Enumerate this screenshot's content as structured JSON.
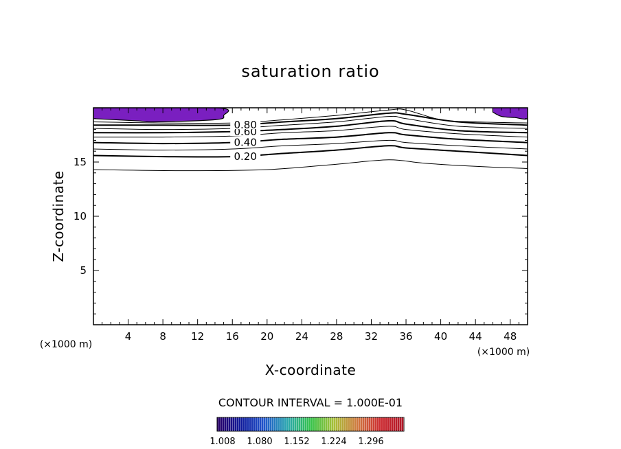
{
  "chart_data": {
    "type": "contour",
    "title": "saturation ratio",
    "xlabel": "X-coordinate",
    "ylabel": "Z-coordinate",
    "x_unit": "(×1000 m)",
    "y_unit": "(×1000 m)",
    "xlim": [
      0,
      50
    ],
    "ylim": [
      0,
      20
    ],
    "x_ticks": [
      4,
      8,
      12,
      16,
      20,
      24,
      28,
      32,
      36,
      40,
      44,
      48
    ],
    "y_ticks": [
      5,
      10,
      15
    ],
    "contour_interval_text": "CONTOUR INTERVAL = 1.000E-01",
    "contour_labels": [
      "0.80",
      "0.60",
      "0.40",
      "0.20"
    ],
    "contours": [
      {
        "level": 0.1,
        "labeled": false,
        "bold": false,
        "points": [
          [
            0,
            14.3
          ],
          [
            10,
            14.2
          ],
          [
            20,
            14.3
          ],
          [
            28,
            14.8
          ],
          [
            34,
            15.2
          ],
          [
            38,
            14.9
          ],
          [
            44,
            14.6
          ],
          [
            50,
            14.4
          ]
        ]
      },
      {
        "level": 0.2,
        "labeled": true,
        "label": "0.20",
        "bold": true,
        "points": [
          [
            0,
            15.6
          ],
          [
            8,
            15.5
          ],
          [
            16,
            15.5
          ],
          [
            22,
            15.8
          ],
          [
            28,
            16.1
          ],
          [
            34,
            16.5
          ],
          [
            36,
            16.3
          ],
          [
            42,
            16.0
          ],
          [
            50,
            15.6
          ]
        ]
      },
      {
        "level": 0.3,
        "labeled": false,
        "bold": false,
        "points": [
          [
            0,
            16.2
          ],
          [
            8,
            16.1
          ],
          [
            16,
            16.2
          ],
          [
            22,
            16.5
          ],
          [
            28,
            16.7
          ],
          [
            34,
            17.0
          ],
          [
            36,
            16.8
          ],
          [
            42,
            16.5
          ],
          [
            50,
            16.2
          ]
        ]
      },
      {
        "level": 0.4,
        "labeled": true,
        "label": "0.40",
        "bold": true,
        "points": [
          [
            0,
            16.8
          ],
          [
            8,
            16.7
          ],
          [
            16,
            16.8
          ],
          [
            22,
            17.1
          ],
          [
            28,
            17.3
          ],
          [
            34,
            17.7
          ],
          [
            36,
            17.5
          ],
          [
            42,
            17.1
          ],
          [
            50,
            16.8
          ]
        ]
      },
      {
        "level": 0.5,
        "labeled": false,
        "bold": false,
        "points": [
          [
            0,
            17.3
          ],
          [
            8,
            17.3
          ],
          [
            16,
            17.4
          ],
          [
            22,
            17.7
          ],
          [
            28,
            17.9
          ],
          [
            34,
            18.3
          ],
          [
            36,
            18.0
          ],
          [
            42,
            17.6
          ],
          [
            50,
            17.3
          ]
        ]
      },
      {
        "level": 0.6,
        "labeled": true,
        "label": "0.60",
        "bold": true,
        "points": [
          [
            0,
            17.7
          ],
          [
            8,
            17.7
          ],
          [
            16,
            17.8
          ],
          [
            22,
            18.0
          ],
          [
            28,
            18.3
          ],
          [
            34,
            18.8
          ],
          [
            36,
            18.5
          ],
          [
            42,
            17.9
          ],
          [
            50,
            17.7
          ]
        ]
      },
      {
        "level": 0.7,
        "labeled": false,
        "bold": false,
        "points": [
          [
            0,
            18.1
          ],
          [
            8,
            18.0
          ],
          [
            16,
            18.1
          ],
          [
            22,
            18.4
          ],
          [
            28,
            18.7
          ],
          [
            34,
            19.2
          ],
          [
            36,
            19.0
          ],
          [
            42,
            18.3
          ],
          [
            50,
            18.1
          ]
        ]
      },
      {
        "level": 0.8,
        "labeled": true,
        "label": "0.80",
        "bold": true,
        "points": [
          [
            0,
            18.4
          ],
          [
            8,
            18.4
          ],
          [
            16,
            18.4
          ],
          [
            22,
            18.7
          ],
          [
            28,
            19.0
          ],
          [
            34,
            19.5
          ],
          [
            36,
            19.4
          ],
          [
            42,
            18.7
          ],
          [
            50,
            18.4
          ]
        ]
      },
      {
        "level": 0.9,
        "labeled": false,
        "bold": false,
        "points": [
          [
            0,
            18.7
          ],
          [
            8,
            18.6
          ],
          [
            16,
            18.6
          ],
          [
            22,
            18.9
          ],
          [
            28,
            19.3
          ],
          [
            34,
            19.8
          ],
          [
            36,
            19.8
          ],
          [
            40,
            18.9
          ],
          [
            44,
            18.7
          ],
          [
            50,
            18.6
          ]
        ]
      }
    ],
    "filled_regions": [
      {
        "points": [
          [
            0,
            20
          ],
          [
            14.2,
            20
          ],
          [
            15,
            19.3
          ],
          [
            14,
            18.9
          ],
          [
            7,
            18.7
          ],
          [
            5,
            18.8
          ],
          [
            0,
            19.0
          ]
        ]
      },
      {
        "points": [
          [
            46,
            20
          ],
          [
            50,
            20
          ],
          [
            50,
            19.0
          ],
          [
            48.5,
            19.1
          ],
          [
            47,
            19.2
          ],
          [
            46,
            19.6
          ]
        ]
      }
    ],
    "fill_color": "#7a1fc0",
    "colorbar": {
      "tick_labels": [
        "1.008",
        "1.080",
        "1.152",
        "1.224",
        "1.296"
      ],
      "stops": [
        "#2a0066",
        "#101a9a",
        "#2255cc",
        "#2ba7b0",
        "#33c24a",
        "#a8c038",
        "#d07a40",
        "#cc2a30",
        "#b01828"
      ]
    },
    "grid": false
  }
}
